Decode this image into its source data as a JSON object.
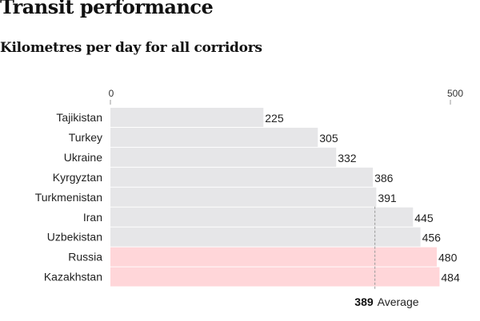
{
  "chart_data": {
    "type": "bar",
    "orientation": "horizontal",
    "title": "Transit performance",
    "subtitle": "Kilometres per day for all corridors",
    "categories": [
      "Tajikistan",
      "Turkey",
      "Ukraine",
      "Kyrgyztan",
      "Turkmenistan",
      "Iran",
      "Uzbekistan",
      "Russia",
      "Kazakhstan"
    ],
    "values": [
      225,
      305,
      332,
      386,
      391,
      445,
      456,
      480,
      484
    ],
    "highlighted": [
      "Russia",
      "Kazakhstan"
    ],
    "xlim": [
      0,
      500
    ],
    "ticks": [
      "0",
      "500"
    ],
    "average": {
      "value": 389,
      "value_label": "389",
      "label": "Average"
    },
    "colors": {
      "bar": "#e6e6e8",
      "highlight": "#ffd6d9",
      "text": "#222222"
    }
  }
}
